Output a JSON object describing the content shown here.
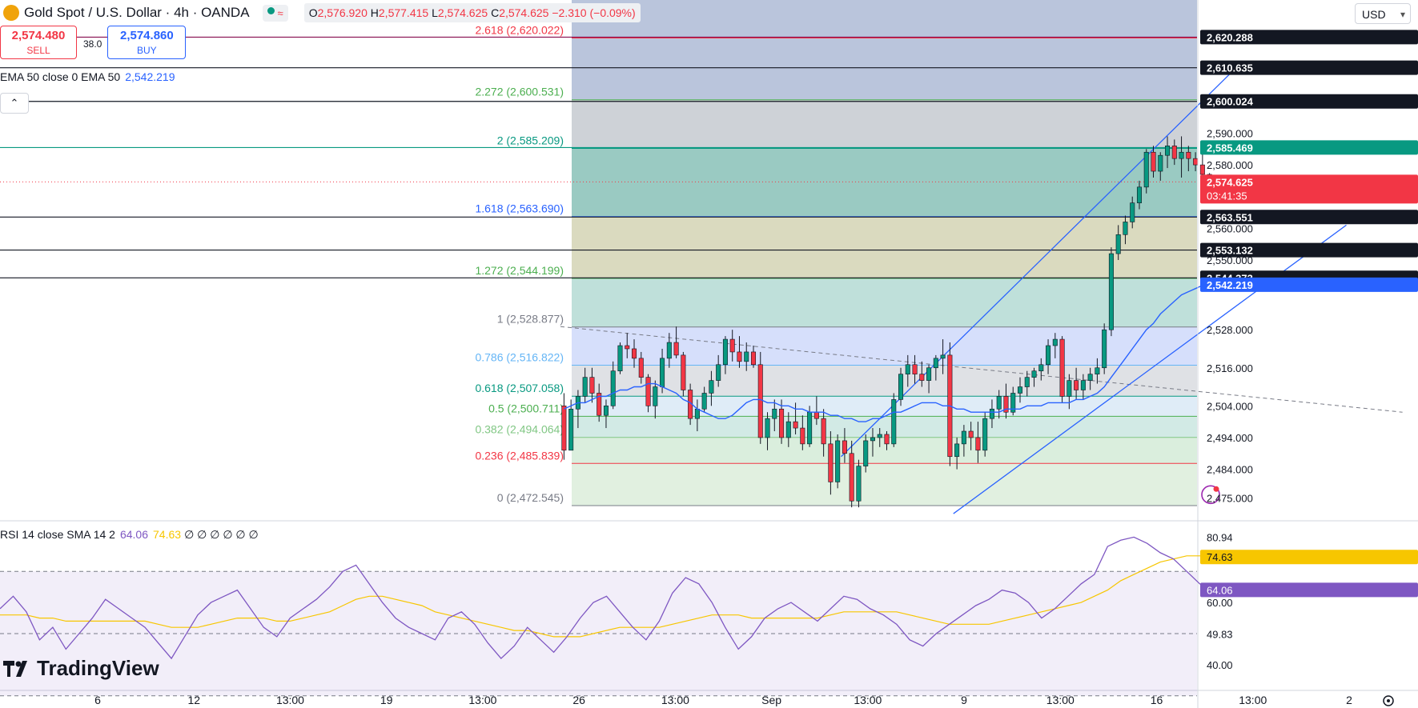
{
  "header": {
    "title": "Gold Spot / U.S. Dollar · 4h · OANDA",
    "ohlc": [
      {
        "k": "O",
        "v": "2,576.920"
      },
      {
        "k": "H",
        "v": "2,577.415"
      },
      {
        "k": "L",
        "v": "2,574.625"
      },
      {
        "k": "C",
        "v": "2,574.625"
      }
    ],
    "change": "−2.310 (−0.09%)"
  },
  "trade": {
    "sell_price": "2,574.480",
    "sell_label": "SELL",
    "spread": "38.0",
    "buy_price": "2,574.860",
    "buy_label": "BUY"
  },
  "ema": {
    "label": "EMA 50 close 0 EMA 50",
    "value": "2,542.219",
    "color": "#2962ff"
  },
  "rsi_header": {
    "label": "RSI 14 close SMA 14 2",
    "rsi": "64.06",
    "sma": "74.63",
    "zeros": "∅ ∅ ∅ ∅ ∅ ∅"
  },
  "brand": "TradingView",
  "currency": "USD",
  "colors": {
    "up": "#089981",
    "down": "#f23645",
    "ema": "#2962ff",
    "rsi": "#7e57c2",
    "rsi_sma": "#f7c600"
  },
  "chart_data": {
    "type": "candlestick",
    "price_axis": {
      "ylim": [
        2468,
        2632
      ],
      "ticks": [
        "2,590.000",
        "2,580.000",
        "2,560.000",
        "2,550.000",
        "2,528.000",
        "2,516.000",
        "2,504.000",
        "2,494.000",
        "2,484.000",
        "2,475.000"
      ],
      "tick_values": [
        2590,
        2580,
        2560,
        2550,
        2528,
        2516,
        2504,
        2494,
        2484,
        2475
      ],
      "labels": [
        {
          "text": "2,620.288",
          "value": 2620.288,
          "style": "black"
        },
        {
          "text": "2,610.635",
          "value": 2610.635,
          "style": "black"
        },
        {
          "text": "2,600.024",
          "value": 2600.024,
          "style": "black"
        },
        {
          "text": "2,585.469",
          "value": 2585.469,
          "style": "green"
        },
        {
          "text": "2,574.625",
          "value": 2574.625,
          "style": "red",
          "sub": "03:41:35"
        },
        {
          "text": "2,563.551",
          "value": 2563.551,
          "style": "black"
        },
        {
          "text": "2,553.132",
          "value": 2553.132,
          "style": "black"
        },
        {
          "text": "2,544.373",
          "value": 2544.373,
          "style": "black"
        },
        {
          "text": "2,542.219",
          "value": 2542.219,
          "style": "blue"
        }
      ]
    },
    "time_axis": {
      "labels": [
        "6",
        "12",
        "13:00",
        "19",
        "13:00",
        "26",
        "13:00",
        "Sep",
        "13:00",
        "9",
        "13:00",
        "16",
        "13:00",
        "2"
      ]
    },
    "horizontal_lines": [
      {
        "value": 2620.288,
        "color": "#880e4f"
      },
      {
        "value": 2610.635,
        "color": "#131722"
      },
      {
        "value": 2600.024,
        "color": "#131722"
      },
      {
        "value": 2585.469,
        "color": "#089981"
      },
      {
        "value": 2563.551,
        "color": "#131722"
      },
      {
        "value": 2553.132,
        "color": "#131722"
      },
      {
        "value": 2544.373,
        "color": "#131722"
      }
    ],
    "fib_levels": [
      {
        "text": "2.618 (2,620.022)",
        "value": 2620.022,
        "color": "#f23645",
        "fill": "#b2bfd8"
      },
      {
        "text": "2.272 (2,600.531)",
        "value": 2600.531,
        "color": "#4caf50",
        "fill": "#c9cdd3"
      },
      {
        "text": "2 (2,585.209)",
        "value": 2585.209,
        "color": "#089981",
        "fill": "#8fc4bb"
      },
      {
        "text": "1.618 (2,563.690)",
        "value": 2563.69,
        "color": "#2962ff",
        "fill": "#d6d6b8"
      },
      {
        "text": "1.272 (2,544.199)",
        "value": 2544.199,
        "color": "#4caf50",
        "fill": "#b8ddd6"
      },
      {
        "text": "1 (2,528.877)",
        "value": 2528.877,
        "color": "#787b86",
        "fill": "#d1dcfb"
      },
      {
        "text": "0.786 (2,516.822)",
        "value": 2516.822,
        "color": "#64b5f6",
        "fill": "#dcdee2"
      },
      {
        "text": "0.618 (2,507.058)",
        "value": 2507.058,
        "color": "#089981",
        "fill": "#dbeaf6"
      },
      {
        "text": "0.5 (2,500.711)",
        "value": 2500.711,
        "color": "#4caf50",
        "fill": "#cde8e2"
      },
      {
        "text": "0.382 (2,494.064)",
        "value": 2494.064,
        "color": "#81c784",
        "fill": "#d6ecd9"
      },
      {
        "text": "0.236 (2,485.839)",
        "value": 2485.839,
        "color": "#f23645",
        "fill": "#deeedd"
      },
      {
        "text": "0 (2,472.545)",
        "value": 2472.545,
        "color": "#787b86",
        "fill": "#f8d4d8"
      }
    ],
    "candles": [
      [
        2504,
        2508,
        2487,
        2490
      ],
      [
        2490,
        2506,
        2490,
        2503
      ],
      [
        2503,
        2509,
        2497,
        2507
      ],
      [
        2507,
        2516,
        2505,
        2513
      ],
      [
        2513,
        2516,
        2505,
        2508
      ],
      [
        2508,
        2511,
        2499,
        2501
      ],
      [
        2501,
        2506,
        2497,
        2504
      ],
      [
        2504,
        2518,
        2503,
        2515
      ],
      [
        2515,
        2524,
        2514,
        2523
      ],
      [
        2523,
        2527,
        2519,
        2522
      ],
      [
        2522,
        2525,
        2516,
        2519
      ],
      [
        2519,
        2521,
        2511,
        2513
      ],
      [
        2513,
        2514,
        2502,
        2504
      ],
      [
        2504,
        2512,
        2500,
        2510
      ],
      [
        2510,
        2522,
        2508,
        2519
      ],
      [
        2519,
        2527,
        2516,
        2524
      ],
      [
        2524,
        2529,
        2519,
        2520
      ],
      [
        2520,
        2521,
        2507,
        2509
      ],
      [
        2509,
        2511,
        2498,
        2500
      ],
      [
        2500,
        2506,
        2496,
        2503
      ],
      [
        2503,
        2510,
        2502,
        2508
      ],
      [
        2508,
        2515,
        2504,
        2512
      ],
      [
        2512,
        2520,
        2510,
        2517
      ],
      [
        2517,
        2526,
        2514,
        2525
      ],
      [
        2525,
        2528,
        2518,
        2521
      ],
      [
        2521,
        2526,
        2516,
        2518
      ],
      [
        2518,
        2524,
        2515,
        2521
      ],
      [
        2521,
        2523,
        2516,
        2517
      ],
      [
        2517,
        2521,
        2492,
        2494
      ],
      [
        2494,
        2502,
        2490,
        2500
      ],
      [
        2500,
        2506,
        2496,
        2503
      ],
      [
        2503,
        2506,
        2492,
        2494
      ],
      [
        2494,
        2502,
        2491,
        2499
      ],
      [
        2499,
        2505,
        2495,
        2497
      ],
      [
        2497,
        2501,
        2490,
        2492
      ],
      [
        2492,
        2504,
        2491,
        2502
      ],
      [
        2502,
        2507,
        2498,
        2500
      ],
      [
        2500,
        2503,
        2488,
        2492
      ],
      [
        2492,
        2496,
        2476,
        2480
      ],
      [
        2480,
        2495,
        2478,
        2493
      ],
      [
        2493,
        2497,
        2486,
        2489
      ],
      [
        2489,
        2493,
        2472,
        2474
      ],
      [
        2474,
        2487,
        2472,
        2485
      ],
      [
        2485,
        2495,
        2483,
        2493
      ],
      [
        2493,
        2497,
        2488,
        2494
      ],
      [
        2494,
        2497,
        2491,
        2495
      ],
      [
        2495,
        2496,
        2490,
        2492
      ],
      [
        2492,
        2508,
        2491,
        2506
      ],
      [
        2506,
        2516,
        2504,
        2514
      ],
      [
        2514,
        2520,
        2510,
        2517
      ],
      [
        2517,
        2520,
        2511,
        2514
      ],
      [
        2514,
        2518,
        2510,
        2512
      ],
      [
        2512,
        2517,
        2508,
        2516
      ],
      [
        2516,
        2520,
        2512,
        2519
      ],
      [
        2519,
        2525,
        2514,
        2520
      ],
      [
        2520,
        2524,
        2485,
        2488
      ],
      [
        2488,
        2494,
        2484,
        2492
      ],
      [
        2492,
        2498,
        2488,
        2496
      ],
      [
        2496,
        2499,
        2490,
        2494
      ],
      [
        2494,
        2499,
        2486,
        2490
      ],
      [
        2490,
        2502,
        2488,
        2500
      ],
      [
        2500,
        2506,
        2497,
        2503
      ],
      [
        2503,
        2509,
        2500,
        2507
      ],
      [
        2507,
        2511,
        2500,
        2502
      ],
      [
        2502,
        2510,
        2501,
        2508
      ],
      [
        2508,
        2513,
        2505,
        2510
      ],
      [
        2510,
        2515,
        2507,
        2513
      ],
      [
        2513,
        2516,
        2510,
        2515
      ],
      [
        2515,
        2519,
        2512,
        2517
      ],
      [
        2517,
        2525,
        2514,
        2523
      ],
      [
        2523,
        2527,
        2519,
        2525
      ],
      [
        2525,
        2526,
        2505,
        2507
      ],
      [
        2507,
        2514,
        2503,
        2512
      ],
      [
        2512,
        2516,
        2506,
        2509
      ],
      [
        2509,
        2514,
        2506,
        2512
      ],
      [
        2512,
        2516,
        2509,
        2514
      ],
      [
        2514,
        2519,
        2511,
        2516
      ],
      [
        2516,
        2530,
        2514,
        2528
      ],
      [
        2528,
        2554,
        2526,
        2552
      ],
      [
        2552,
        2561,
        2550,
        2558
      ],
      [
        2558,
        2564,
        2555,
        2562
      ],
      [
        2562,
        2570,
        2560,
        2568
      ],
      [
        2568,
        2575,
        2566,
        2573
      ],
      [
        2573,
        2585,
        2571,
        2584
      ],
      [
        2584,
        2586,
        2576,
        2578
      ],
      [
        2578,
        2584,
        2575,
        2583
      ],
      [
        2583,
        2589,
        2579,
        2586
      ],
      [
        2586,
        2588,
        2580,
        2582
      ],
      [
        2582,
        2589,
        2576,
        2584
      ],
      [
        2584,
        2586,
        2578,
        2582
      ],
      [
        2582,
        2584,
        2578,
        2580
      ],
      [
        2580,
        2584,
        2574,
        2577
      ],
      [
        2577,
        2577.4,
        2574.6,
        2574.6
      ]
    ],
    "ema50": [
      2503,
      2504,
      2505,
      2505,
      2506,
      2507,
      2507,
      2508,
      2509,
      2509,
      2510,
      2510,
      2511,
      2511,
      2510,
      2509,
      2508,
      2506,
      2505,
      2503,
      2502,
      2501,
      2500,
      2500,
      2501,
      2503,
      2505,
      2506,
      2506,
      2505,
      2505,
      2504,
      2504,
      2503,
      2503,
      2502,
      2502,
      2502,
      2501,
      2501,
      2500,
      2500,
      2499,
      2499,
      2500,
      2500,
      2501,
      2502,
      2502,
      2503,
      2504,
      2505,
      2505,
      2505,
      2504,
      2504,
      2503,
      2503,
      2502,
      2502,
      2502,
      2502,
      2502,
      2503,
      2503,
      2503,
      2504,
      2504,
      2504,
      2505,
      2505,
      2505,
      2505,
      2506,
      2506,
      2507,
      2508,
      2510,
      2513,
      2516,
      2519,
      2522,
      2525,
      2528,
      2530,
      2533,
      2535,
      2537,
      2539,
      2540,
      2541,
      2542,
      2542.2
    ],
    "channel_lines": [
      {
        "from": [
          40,
          2488
        ],
        "to": [
          96,
          2610
        ]
      },
      {
        "from": [
          56,
          2470
        ],
        "to": [
          112,
          2561
        ]
      }
    ],
    "downtrend_line": {
      "from": [
        0,
        2529
      ],
      "to": [
        120,
        2502
      ]
    },
    "rsi": {
      "ylim": [
        32,
        86
      ],
      "ticks": [
        "80.94",
        "60.00",
        "49.83",
        "40.00"
      ],
      "tick_values": [
        80.94,
        60,
        49.83,
        40
      ],
      "levels": [
        70,
        50,
        30
      ],
      "values": [
        58,
        62,
        57,
        48,
        52,
        45,
        50,
        55,
        61,
        58,
        55,
        52,
        47,
        42,
        49,
        56,
        60,
        62,
        64,
        58,
        52,
        49,
        55,
        58,
        61,
        65,
        70,
        72,
        66,
        60,
        55,
        52,
        50,
        48,
        55,
        57,
        53,
        47,
        42,
        46,
        52,
        48,
        44,
        49,
        55,
        60,
        62,
        57,
        52,
        48,
        54,
        63,
        68,
        66,
        60,
        52,
        45,
        49,
        55,
        58,
        60,
        57,
        54,
        58,
        62,
        61,
        58,
        56,
        53,
        48,
        46,
        50,
        53,
        56,
        59,
        61,
        64,
        63,
        60,
        55,
        58,
        62,
        66,
        69,
        78,
        80,
        81,
        79,
        76,
        74,
        70,
        66,
        64.06
      ],
      "sma": [
        56,
        56,
        56,
        55,
        55,
        54,
        54,
        54,
        54,
        54,
        54,
        54,
        53,
        52,
        52,
        52,
        53,
        54,
        55,
        55,
        55,
        54,
        54,
        55,
        56,
        57,
        59,
        61,
        62,
        62,
        61,
        60,
        59,
        57,
        56,
        55,
        54,
        53,
        52,
        51,
        51,
        50,
        49,
        49,
        49,
        50,
        51,
        52,
        52,
        52,
        52,
        53,
        54,
        55,
        56,
        56,
        56,
        55,
        55,
        55,
        55,
        55,
        55,
        56,
        57,
        57,
        57,
        57,
        57,
        56,
        55,
        54,
        53,
        53,
        53,
        53,
        54,
        55,
        56,
        57,
        58,
        59,
        60,
        62,
        64,
        67,
        69,
        71,
        73,
        74,
        75,
        75,
        74.63
      ],
      "line_color": "#7e57c2",
      "sma_color": "#f7c600",
      "labels": [
        {
          "text": "74.63",
          "value": 74.63,
          "style": "yellow"
        },
        {
          "text": "64.06",
          "value": 64.06,
          "style": "purple"
        }
      ]
    }
  }
}
